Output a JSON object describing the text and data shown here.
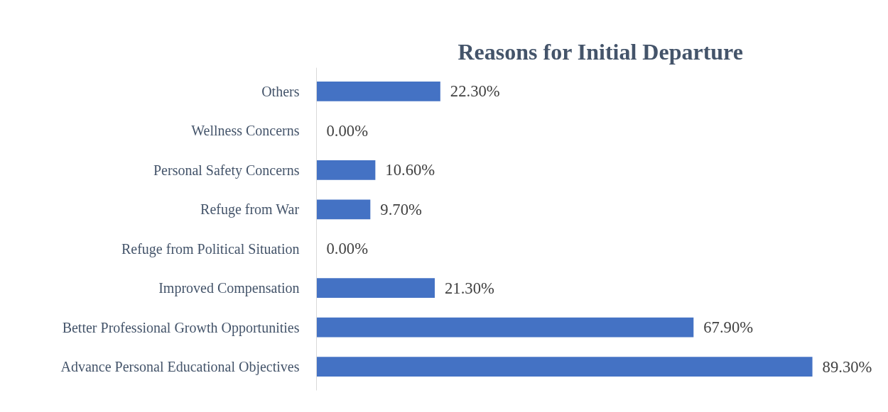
{
  "chart_data": {
    "type": "bar",
    "orientation": "horizontal",
    "title": "Reasons for Initial Departure",
    "categories": [
      "Others",
      "Wellness Concerns",
      "Personal Safety Concerns",
      "Refuge from War",
      "Refuge from Political Situation",
      "Improved Compensation",
      "Better Professional Growth Opportunities",
      "Advance Personal Educational Objectives"
    ],
    "values": [
      22.3,
      0.0,
      10.6,
      9.7,
      0.0,
      21.3,
      67.9,
      89.3
    ],
    "value_labels": [
      "22.30%",
      "0.00%",
      "10.60%",
      "9.70%",
      "0.00%",
      "21.30%",
      "67.90%",
      "89.30%"
    ],
    "color": "#4472c4"
  }
}
